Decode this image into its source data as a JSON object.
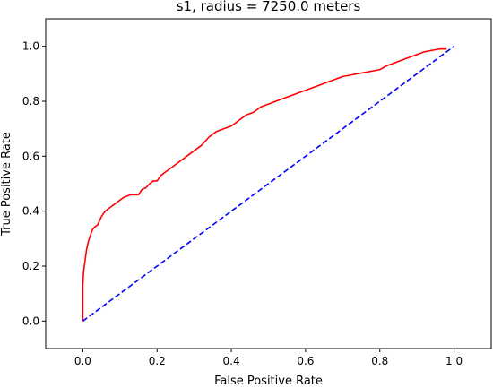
{
  "chart_data": {
    "type": "line",
    "title": "s1, radius = 7250.0 meters",
    "xlabel": "False Positive Rate",
    "ylabel": "True Positive Rate",
    "xlim": [
      -0.1,
      1.1
    ],
    "ylim": [
      -0.1,
      1.1
    ],
    "xticks": [
      0.0,
      0.2,
      0.4,
      0.6,
      0.8,
      1.0
    ],
    "yticks": [
      0.0,
      0.2,
      0.4,
      0.6,
      0.8,
      1.0
    ],
    "xtick_labels": [
      "0.0",
      "0.2",
      "0.4",
      "0.6",
      "0.8",
      "1.0"
    ],
    "ytick_labels": [
      "0.0",
      "0.2",
      "0.4",
      "0.6",
      "0.8",
      "1.0"
    ],
    "grid": false,
    "series": [
      {
        "color": "#ff0000",
        "style": "solid",
        "x": [
          0.0,
          0.0,
          0.002,
          0.005,
          0.01,
          0.015,
          0.02,
          0.025,
          0.03,
          0.04,
          0.05,
          0.06,
          0.07,
          0.08,
          0.09,
          0.1,
          0.11,
          0.12,
          0.13,
          0.15,
          0.16,
          0.17,
          0.18,
          0.19,
          0.2,
          0.21,
          0.22,
          0.24,
          0.25,
          0.26,
          0.28,
          0.3,
          0.32,
          0.34,
          0.35,
          0.36,
          0.38,
          0.4,
          0.42,
          0.44,
          0.46,
          0.48,
          0.5,
          0.52,
          0.54,
          0.56,
          0.58,
          0.6,
          0.62,
          0.64,
          0.66,
          0.68,
          0.7,
          0.72,
          0.74,
          0.76,
          0.78,
          0.8,
          0.82,
          0.84,
          0.86,
          0.88,
          0.9,
          0.92,
          0.94,
          0.96,
          0.98
        ],
        "y": [
          0.0,
          0.13,
          0.18,
          0.21,
          0.26,
          0.29,
          0.31,
          0.33,
          0.34,
          0.35,
          0.38,
          0.4,
          0.41,
          0.42,
          0.43,
          0.44,
          0.45,
          0.455,
          0.46,
          0.46,
          0.48,
          0.485,
          0.5,
          0.51,
          0.51,
          0.53,
          0.54,
          0.56,
          0.57,
          0.58,
          0.6,
          0.62,
          0.64,
          0.67,
          0.68,
          0.69,
          0.7,
          0.71,
          0.73,
          0.75,
          0.76,
          0.78,
          0.79,
          0.8,
          0.81,
          0.82,
          0.83,
          0.84,
          0.85,
          0.86,
          0.87,
          0.88,
          0.89,
          0.895,
          0.9,
          0.905,
          0.91,
          0.915,
          0.93,
          0.94,
          0.95,
          0.96,
          0.97,
          0.98,
          0.985,
          0.99,
          0.99
        ]
      },
      {
        "color": "#0000ff",
        "style": "dashed",
        "x": [
          0.0,
          1.0
        ],
        "y": [
          0.0,
          1.0
        ]
      }
    ]
  }
}
